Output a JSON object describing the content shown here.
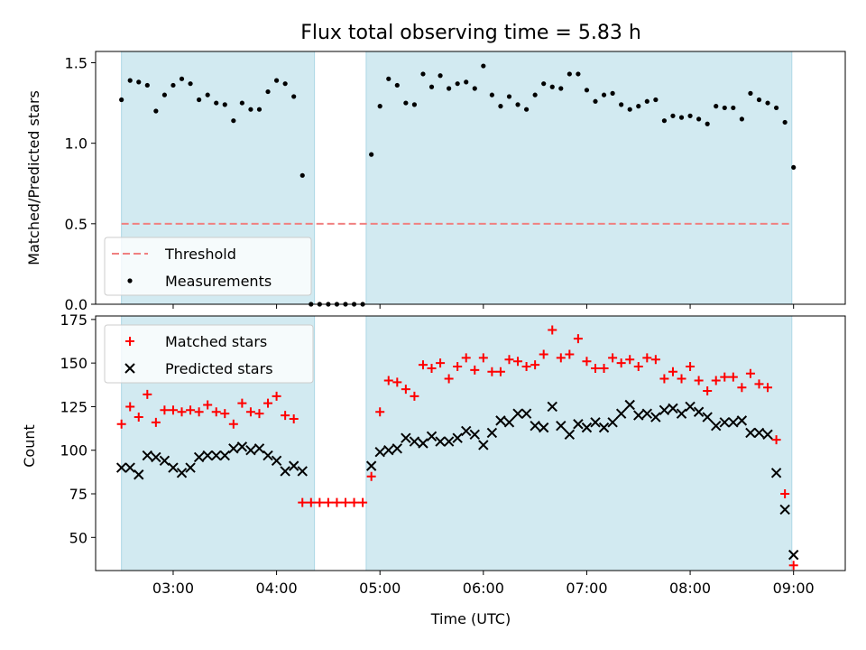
{
  "chart_data": {
    "title": "Flux total observing time = 5.83 h",
    "xlabel": "Time (UTC)",
    "x_ticks": [
      "03:00",
      "04:00",
      "05:00",
      "06:00",
      "07:00",
      "08:00",
      "09:00"
    ],
    "x_range": [
      "02:15",
      "09:30"
    ],
    "shaded_intervals": [
      [
        "02:30",
        "04:22"
      ],
      [
        "04:52",
        "08:59"
      ]
    ],
    "shade_color": "#add8e6",
    "panels": [
      {
        "type": "scatter",
        "ylabel": "Matched/Predicted stars",
        "ylim": [
          0,
          1.57
        ],
        "yticks": [
          "0.0",
          "0.5",
          "1.0",
          "1.5"
        ],
        "legend": {
          "position": "lower-left",
          "entries": [
            "Threshold",
            "Measurements"
          ]
        },
        "threshold": {
          "name": "Threshold",
          "value": 0.5,
          "color": "#f08080",
          "style": "dashed",
          "x_start": "02:30",
          "x_end": "08:59"
        },
        "series": [
          {
            "name": "Measurements",
            "color": "#000000",
            "marker": "dot",
            "points": [
              [
                "02:30",
                1.27
              ],
              [
                "02:35",
                1.39
              ],
              [
                "02:40",
                1.38
              ],
              [
                "02:45",
                1.36
              ],
              [
                "02:50",
                1.2
              ],
              [
                "02:55",
                1.3
              ],
              [
                "03:00",
                1.36
              ],
              [
                "03:05",
                1.4
              ],
              [
                "03:10",
                1.37
              ],
              [
                "03:15",
                1.27
              ],
              [
                "03:20",
                1.3
              ],
              [
                "03:25",
                1.25
              ],
              [
                "03:30",
                1.24
              ],
              [
                "03:35",
                1.14
              ],
              [
                "03:40",
                1.25
              ],
              [
                "03:45",
                1.21
              ],
              [
                "03:50",
                1.21
              ],
              [
                "03:55",
                1.32
              ],
              [
                "04:00",
                1.39
              ],
              [
                "04:05",
                1.37
              ],
              [
                "04:10",
                1.29
              ],
              [
                "04:15",
                0.8
              ],
              [
                "04:20",
                0.0
              ],
              [
                "04:25",
                0.0
              ],
              [
                "04:30",
                0.0
              ],
              [
                "04:35",
                0.0
              ],
              [
                "04:40",
                0.0
              ],
              [
                "04:45",
                0.0
              ],
              [
                "04:50",
                0.0
              ],
              [
                "04:55",
                0.93
              ],
              [
                "05:00",
                1.23
              ],
              [
                "05:05",
                1.4
              ],
              [
                "05:10",
                1.36
              ],
              [
                "05:15",
                1.25
              ],
              [
                "05:20",
                1.24
              ],
              [
                "05:25",
                1.43
              ],
              [
                "05:30",
                1.35
              ],
              [
                "05:35",
                1.42
              ],
              [
                "05:40",
                1.34
              ],
              [
                "05:45",
                1.37
              ],
              [
                "05:50",
                1.38
              ],
              [
                "05:55",
                1.34
              ],
              [
                "06:00",
                1.48
              ],
              [
                "06:05",
                1.3
              ],
              [
                "06:10",
                1.23
              ],
              [
                "06:15",
                1.29
              ],
              [
                "06:20",
                1.24
              ],
              [
                "06:25",
                1.21
              ],
              [
                "06:30",
                1.3
              ],
              [
                "06:35",
                1.37
              ],
              [
                "06:40",
                1.35
              ],
              [
                "06:45",
                1.34
              ],
              [
                "06:50",
                1.43
              ],
              [
                "06:55",
                1.43
              ],
              [
                "07:00",
                1.33
              ],
              [
                "07:05",
                1.26
              ],
              [
                "07:10",
                1.3
              ],
              [
                "07:15",
                1.31
              ],
              [
                "07:20",
                1.24
              ],
              [
                "07:25",
                1.21
              ],
              [
                "07:30",
                1.23
              ],
              [
                "07:35",
                1.26
              ],
              [
                "07:40",
                1.27
              ],
              [
                "07:45",
                1.14
              ],
              [
                "07:50",
                1.17
              ],
              [
                "07:55",
                1.16
              ],
              [
                "08:00",
                1.17
              ],
              [
                "08:05",
                1.15
              ],
              [
                "08:10",
                1.12
              ],
              [
                "08:15",
                1.23
              ],
              [
                "08:20",
                1.22
              ],
              [
                "08:25",
                1.22
              ],
              [
                "08:30",
                1.15
              ],
              [
                "08:35",
                1.31
              ],
              [
                "08:40",
                1.27
              ],
              [
                "08:45",
                1.25
              ],
              [
                "08:50",
                1.22
              ],
              [
                "08:55",
                1.13
              ],
              [
                "09:00",
                0.85
              ]
            ]
          }
        ]
      },
      {
        "type": "scatter",
        "ylabel": "Count",
        "ylim": [
          31,
          177
        ],
        "yticks": [
          "50",
          "75",
          "100",
          "125",
          "150",
          "175"
        ],
        "legend": {
          "position": "upper-left",
          "entries": [
            "Matched stars",
            "Predicted stars"
          ]
        },
        "series": [
          {
            "name": "Matched stars",
            "color": "#ff0000",
            "marker": "plus",
            "points": [
              [
                "02:30",
                115
              ],
              [
                "02:35",
                125
              ],
              [
                "02:40",
                119
              ],
              [
                "02:45",
                132
              ],
              [
                "02:50",
                116
              ],
              [
                "02:55",
                123
              ],
              [
                "03:00",
                123
              ],
              [
                "03:05",
                122
              ],
              [
                "03:10",
                123
              ],
              [
                "03:15",
                122
              ],
              [
                "03:20",
                126
              ],
              [
                "03:25",
                122
              ],
              [
                "03:30",
                121
              ],
              [
                "03:35",
                115
              ],
              [
                "03:40",
                127
              ],
              [
                "03:45",
                122
              ],
              [
                "03:50",
                121
              ],
              [
                "03:55",
                127
              ],
              [
                "04:00",
                131
              ],
              [
                "04:05",
                120
              ],
              [
                "04:10",
                118
              ],
              [
                "04:15",
                70
              ],
              [
                "04:20",
                70
              ],
              [
                "04:25",
                70
              ],
              [
                "04:30",
                70
              ],
              [
                "04:35",
                70
              ],
              [
                "04:40",
                70
              ],
              [
                "04:45",
                70
              ],
              [
                "04:50",
                70
              ],
              [
                "04:55",
                85
              ],
              [
                "05:00",
                122
              ],
              [
                "05:05",
                140
              ],
              [
                "05:10",
                139
              ],
              [
                "05:15",
                135
              ],
              [
                "05:20",
                131
              ],
              [
                "05:25",
                149
              ],
              [
                "05:30",
                147
              ],
              [
                "05:35",
                150
              ],
              [
                "05:40",
                141
              ],
              [
                "05:45",
                148
              ],
              [
                "05:50",
                153
              ],
              [
                "05:55",
                146
              ],
              [
                "06:00",
                153
              ],
              [
                "06:05",
                145
              ],
              [
                "06:10",
                145
              ],
              [
                "06:15",
                152
              ],
              [
                "06:20",
                151
              ],
              [
                "06:25",
                148
              ],
              [
                "06:30",
                149
              ],
              [
                "06:35",
                155
              ],
              [
                "06:40",
                169
              ],
              [
                "06:45",
                153
              ],
              [
                "06:50",
                155
              ],
              [
                "06:55",
                164
              ],
              [
                "07:00",
                151
              ],
              [
                "07:05",
                147
              ],
              [
                "07:10",
                147
              ],
              [
                "07:15",
                153
              ],
              [
                "07:20",
                150
              ],
              [
                "07:25",
                152
              ],
              [
                "07:30",
                148
              ],
              [
                "07:35",
                153
              ],
              [
                "07:40",
                152
              ],
              [
                "07:45",
                141
              ],
              [
                "07:50",
                145
              ],
              [
                "07:55",
                141
              ],
              [
                "08:00",
                148
              ],
              [
                "08:05",
                140
              ],
              [
                "08:10",
                134
              ],
              [
                "08:15",
                140
              ],
              [
                "08:20",
                142
              ],
              [
                "08:25",
                142
              ],
              [
                "08:30",
                136
              ],
              [
                "08:35",
                144
              ],
              [
                "08:40",
                138
              ],
              [
                "08:45",
                136
              ],
              [
                "08:50",
                106
              ],
              [
                "08:55",
                75
              ],
              [
                "09:00",
                34
              ]
            ]
          },
          {
            "name": "Predicted stars",
            "color": "#000000",
            "marker": "x",
            "points": [
              [
                "02:30",
                90
              ],
              [
                "02:35",
                90
              ],
              [
                "02:40",
                86
              ],
              [
                "02:45",
                97
              ],
              [
                "02:50",
                96
              ],
              [
                "02:55",
                94
              ],
              [
                "03:00",
                90
              ],
              [
                "03:05",
                87
              ],
              [
                "03:10",
                90
              ],
              [
                "03:15",
                96
              ],
              [
                "03:20",
                97
              ],
              [
                "03:25",
                97
              ],
              [
                "03:30",
                97
              ],
              [
                "03:35",
                101
              ],
              [
                "03:40",
                102
              ],
              [
                "03:45",
                100
              ],
              [
                "03:50",
                101
              ],
              [
                "03:55",
                97
              ],
              [
                "04:00",
                94
              ],
              [
                "04:05",
                88
              ],
              [
                "04:10",
                91
              ],
              [
                "04:15",
                88
              ],
              [
                "04:55",
                91
              ],
              [
                "05:00",
                99
              ],
              [
                "05:05",
                100
              ],
              [
                "05:10",
                101
              ],
              [
                "05:15",
                107
              ],
              [
                "05:20",
                105
              ],
              [
                "05:25",
                104
              ],
              [
                "05:30",
                108
              ],
              [
                "05:35",
                105
              ],
              [
                "05:40",
                105
              ],
              [
                "05:45",
                107
              ],
              [
                "05:50",
                111
              ],
              [
                "05:55",
                109
              ],
              [
                "06:00",
                103
              ],
              [
                "06:05",
                110
              ],
              [
                "06:10",
                117
              ],
              [
                "06:15",
                116
              ],
              [
                "06:20",
                121
              ],
              [
                "06:25",
                121
              ],
              [
                "06:30",
                114
              ],
              [
                "06:35",
                113
              ],
              [
                "06:40",
                125
              ],
              [
                "06:45",
                114
              ],
              [
                "06:50",
                109
              ],
              [
                "06:55",
                115
              ],
              [
                "07:00",
                113
              ],
              [
                "07:05",
                116
              ],
              [
                "07:10",
                113
              ],
              [
                "07:15",
                116
              ],
              [
                "07:20",
                121
              ],
              [
                "07:25",
                126
              ],
              [
                "07:30",
                120
              ],
              [
                "07:35",
                121
              ],
              [
                "07:40",
                119
              ],
              [
                "07:45",
                123
              ],
              [
                "07:50",
                124
              ],
              [
                "07:55",
                121
              ],
              [
                "08:00",
                125
              ],
              [
                "08:05",
                122
              ],
              [
                "08:10",
                119
              ],
              [
                "08:15",
                114
              ],
              [
                "08:20",
                116
              ],
              [
                "08:25",
                116
              ],
              [
                "08:30",
                117
              ],
              [
                "08:35",
                110
              ],
              [
                "08:40",
                110
              ],
              [
                "08:45",
                109
              ],
              [
                "08:50",
                87
              ],
              [
                "08:55",
                66
              ],
              [
                "09:00",
                40
              ]
            ]
          }
        ]
      }
    ]
  }
}
